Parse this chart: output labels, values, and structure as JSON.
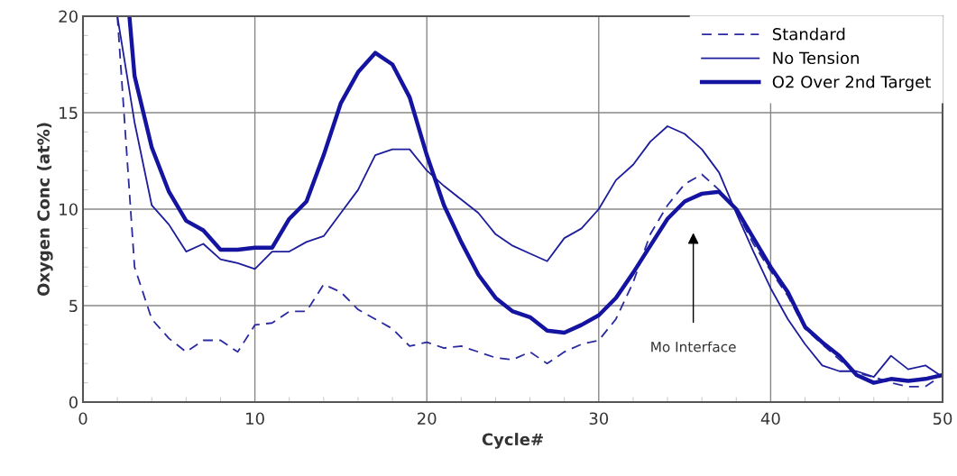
{
  "chart_data": {
    "type": "line",
    "xlabel": "Cycle#",
    "ylabel": "Oxygen Conc (at%)",
    "xlim": [
      0,
      50
    ],
    "ylim": [
      0,
      20
    ],
    "xticks": [
      0,
      10,
      20,
      30,
      40,
      50
    ],
    "yticks": [
      0,
      5,
      10,
      15,
      20
    ],
    "grid": true,
    "legend": "top right",
    "marker": "none",
    "annotations": [
      "Mo Interface"
    ],
    "series": [
      {
        "name": "Standard",
        "color": "#2a2aa0",
        "line_style": "dashed",
        "x": [
          2,
          3,
          4,
          5,
          6,
          7,
          8,
          9,
          10,
          11,
          12,
          13,
          14,
          15,
          16,
          17,
          18,
          19,
          20,
          21,
          22,
          23,
          24,
          25,
          26,
          27,
          28,
          29,
          30,
          31,
          32,
          33,
          34,
          35,
          36,
          37,
          38,
          39,
          40,
          41,
          42,
          43,
          44,
          45,
          46,
          47,
          48,
          49,
          50
        ],
        "values": [
          20,
          7.0,
          4.3,
          3.3,
          2.6,
          3.2,
          3.2,
          2.6,
          4.0,
          4.1,
          4.7,
          4.7,
          6.1,
          5.7,
          4.8,
          4.3,
          3.8,
          2.9,
          3.1,
          2.8,
          2.9,
          2.6,
          2.3,
          2.2,
          2.6,
          2.0,
          2.6,
          3.0,
          3.2,
          4.3,
          6.2,
          8.7,
          10.2,
          11.3,
          11.8,
          11.0,
          9.9,
          8.2,
          6.8,
          5.5,
          3.8,
          3.0,
          2.2,
          1.5,
          1.3,
          1.0,
          0.8,
          0.8,
          1.4
        ]
      },
      {
        "name": "No Tension",
        "color": "#1c1c9c",
        "line_style": "solid",
        "x": [
          2,
          3,
          4,
          5,
          6,
          7,
          8,
          9,
          10,
          11,
          12,
          13,
          14,
          15,
          16,
          17,
          18,
          19,
          20,
          21,
          22,
          23,
          24,
          25,
          26,
          27,
          28,
          29,
          30,
          31,
          32,
          33,
          34,
          35,
          36,
          37,
          38,
          39,
          40,
          41,
          42,
          43,
          44,
          45,
          46,
          47,
          48,
          49,
          50
        ],
        "values": [
          20,
          14.5,
          10.2,
          9.2,
          7.8,
          8.2,
          7.4,
          7.2,
          6.9,
          7.8,
          7.8,
          8.3,
          8.6,
          9.8,
          11.0,
          12.8,
          13.1,
          13.1,
          12.0,
          11.2,
          10.5,
          9.8,
          8.7,
          8.1,
          7.7,
          7.3,
          8.5,
          9.0,
          10.0,
          11.5,
          12.3,
          13.5,
          14.3,
          13.9,
          13.1,
          11.9,
          9.8,
          7.8,
          5.9,
          4.3,
          3.0,
          1.9,
          1.6,
          1.6,
          1.3,
          2.4,
          1.7,
          1.9,
          1.3
        ]
      },
      {
        "name": "O2 Over 2nd Target",
        "color": "#1414a0",
        "line_style": "solid",
        "x": [
          2.7,
          3,
          4,
          5,
          6,
          7,
          8,
          9,
          10,
          11,
          12,
          13,
          14,
          15,
          16,
          17,
          18,
          19,
          20,
          21,
          22,
          23,
          24,
          25,
          26,
          27,
          28,
          29,
          30,
          31,
          32,
          33,
          34,
          35,
          36,
          37,
          38,
          39,
          40,
          41,
          42,
          43,
          44,
          45,
          46,
          47,
          48,
          49,
          50
        ],
        "values": [
          20,
          16.9,
          13.2,
          10.9,
          9.4,
          8.9,
          7.9,
          7.9,
          8.0,
          8.0,
          9.5,
          10.4,
          12.8,
          15.5,
          17.1,
          18.1,
          17.5,
          15.8,
          12.8,
          10.2,
          8.3,
          6.6,
          5.4,
          4.7,
          4.4,
          3.7,
          3.6,
          4.0,
          4.5,
          5.4,
          6.7,
          8.1,
          9.5,
          10.4,
          10.8,
          10.9,
          10.0,
          8.5,
          7.0,
          5.7,
          3.9,
          3.1,
          2.4,
          1.4,
          1.0,
          1.2,
          1.1,
          1.2,
          1.4
        ]
      }
    ]
  }
}
